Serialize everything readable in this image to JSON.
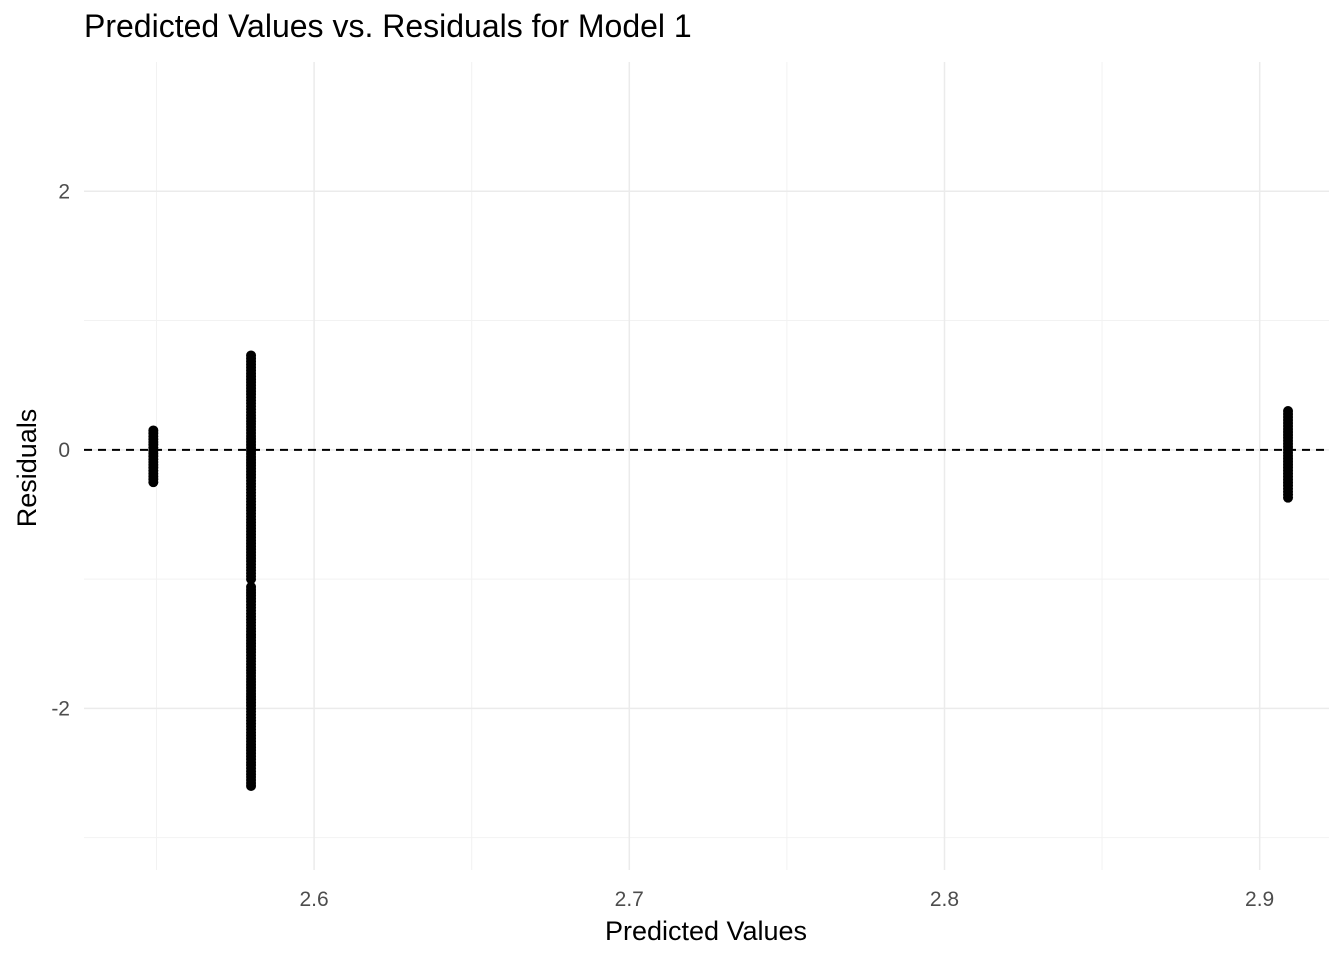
{
  "chart_data": {
    "type": "scatter",
    "title": "Predicted Values vs. Residuals for Model 1",
    "xlabel": "Predicted Values",
    "ylabel": "Residuals",
    "xlim": [
      2.527,
      2.922
    ],
    "ylim": [
      -3.25,
      3.0
    ],
    "x_ticks": [
      2.6,
      2.7,
      2.8,
      2.9
    ],
    "x_tick_labels": [
      "2.6",
      "2.7",
      "2.8",
      "2.9"
    ],
    "y_ticks": [
      -2,
      0,
      2
    ],
    "y_tick_labels": [
      "-2",
      "0",
      "2"
    ],
    "grid": true,
    "reference_line": {
      "y": 0,
      "style": "dashed",
      "color": "#000000"
    },
    "point_color": "#000000",
    "series": [
      {
        "x": 2.549,
        "y_min": -0.25,
        "y_max": 0.15
      },
      {
        "x": 2.58,
        "y_min": -2.6,
        "y_max": 0.73,
        "gaps": [
          [
            -1.06,
            -1.0
          ]
        ]
      },
      {
        "x": 2.909,
        "y_min": -0.37,
        "y_max": 0.3
      }
    ]
  }
}
